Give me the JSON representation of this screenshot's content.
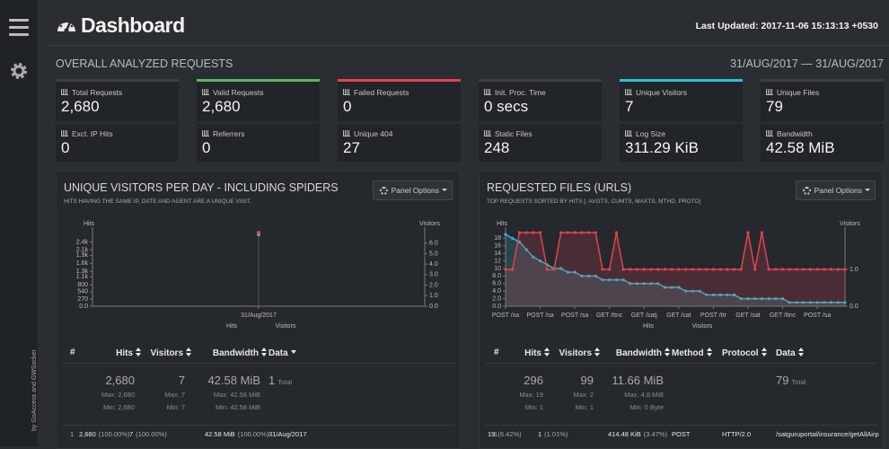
{
  "sidebar": {
    "credit": "by GoAccess and GWSocket"
  },
  "header": {
    "title": "Dashboard",
    "last_updated": "Last Updated: 2017-11-06 15:13:13 +0530"
  },
  "overview": {
    "title": "OVERALL ANALYZED REQUESTS",
    "date_range": "31/AUG/2017 — 31/AUG/2017",
    "cards": [
      {
        "label": "Total Requests",
        "value": "2,680",
        "accent": "#3a3f45"
      },
      {
        "label": "Valid Requests",
        "value": "2,680",
        "accent": "#5cb85c"
      },
      {
        "label": "Failed Requests",
        "value": "0",
        "accent": "#e0434f"
      },
      {
        "label": "Init. Proc. Time",
        "value": "0 secs",
        "accent": "#3a3f45"
      },
      {
        "label": "Unique Visitors",
        "value": "7",
        "accent": "#2bc0d8"
      },
      {
        "label": "Unique Files",
        "value": "79",
        "accent": "#3a3f45"
      },
      {
        "label": "Excl. IP Hits",
        "value": "0"
      },
      {
        "label": "Referrers",
        "value": "0"
      },
      {
        "label": "Unique 404",
        "value": "27"
      },
      {
        "label": "Static Files",
        "value": "248"
      },
      {
        "label": "Log Size",
        "value": "311.29 KiB"
      },
      {
        "label": "Bandwidth",
        "value": "42.58 MiB"
      }
    ]
  },
  "panels": [
    {
      "title": "UNIQUE VISITORS PER DAY - INCLUDING SPIDERS",
      "subtitle": "HITS HAVING THE SAME IP, DATE AND AGENT ARE A UNIQUE VISIT.",
      "options": "Panel Options",
      "chart": {
        "type": "line",
        "y_label": "Hits",
        "y2_label": "Visitors",
        "x_grid": true,
        "categories": [
          "31/Aug/2017"
        ],
        "ylim": [
          0,
          2750
        ],
        "yticks": [
          {
            "value": 0,
            "label": "0.0"
          },
          270,
          540,
          800,
          {
            "value": 1100,
            "label": "1.1k"
          },
          {
            "value": 1300,
            "label": "1.3k"
          },
          {
            "value": 1600,
            "label": "1.6k"
          },
          {
            "value": 1900,
            "label": "1.9k"
          },
          {
            "value": 2100,
            "label": "2.1k"
          },
          {
            "value": 2400,
            "label": "2.4k"
          }
        ],
        "y2lim": [
          0,
          7
        ],
        "y2ticks": [
          {
            "value": 0,
            "label": "0.0"
          },
          {
            "value": 1,
            "label": "1.0"
          },
          {
            "value": 2,
            "label": "2.0"
          },
          {
            "value": 3,
            "label": "3.0"
          },
          {
            "value": 4,
            "label": "4.0"
          },
          {
            "value": 5,
            "label": "5.0"
          },
          {
            "value": 6,
            "label": "6.0"
          }
        ],
        "series": [
          {
            "name": "Hits",
            "color": "#35b7d0",
            "values": [
              2680
            ]
          },
          {
            "name": "Visitors",
            "color": "#e0434f",
            "axis": "y2",
            "values": [
              7
            ]
          }
        ]
      },
      "table": {
        "columns": [
          {
            "label": "#"
          },
          {
            "label": "Hits",
            "sort": "both",
            "total": "2,680",
            "max": "Max: 2,680",
            "min": "Min: 2,680"
          },
          {
            "label": "Visitors",
            "sort": "both",
            "total": "7",
            "max": "Max: 7",
            "min": "Min: 7"
          },
          {
            "label": "Bandwidth",
            "sort": "both",
            "total": "42.58 MiB",
            "max": "Max: 42.58 MiB",
            "min": "Min: 42.58 MiB"
          },
          {
            "label": "Data",
            "sort": "desc",
            "total": "1",
            "total_label": "Total"
          }
        ],
        "rows": [
          [
            "1",
            {
              "value": "2,680",
              "share": "(100.00%)"
            },
            {
              "value": "7",
              "share": "(100.00%)"
            },
            {
              "value": "42.58 MiB",
              "share": "(100.00%)"
            },
            "31/Aug/2017"
          ]
        ]
      }
    },
    {
      "title": "REQUESTED FILES (URLS)",
      "subtitle": "TOP REQUESTS SORTED BY HITS [, AVGTS, CUMTS, MAXTS, MTHD, PROTO]",
      "options": "Panel Options",
      "chart": {
        "type": "line",
        "y_label": "Hits",
        "y2_label": "Visitors",
        "area": true,
        "categories": [
          "POST /sa",
          null,
          null,
          null,
          null,
          "POST /sa",
          null,
          null,
          null,
          null,
          "POST /sa",
          null,
          null,
          null,
          null,
          "GET /ttnc",
          null,
          null,
          null,
          null,
          "GET /satj",
          null,
          null,
          null,
          null,
          "GET /cat",
          null,
          null,
          null,
          null,
          "POST /ttr",
          null,
          null,
          null,
          null,
          "GET /sat",
          null,
          null,
          null,
          null,
          "GET /ttnc",
          null,
          null,
          null,
          null,
          "POST /sa",
          null,
          null,
          null,
          null
        ],
        "ylim": [
          0,
          19.5
        ],
        "yticks": [
          {
            "value": 0,
            "label": "0.0"
          },
          {
            "value": 2,
            "label": "2.0"
          },
          {
            "value": 4,
            "label": "4.0"
          },
          {
            "value": 6,
            "label": "6.0"
          },
          {
            "value": 8,
            "label": "8.0"
          },
          10,
          12,
          14,
          16,
          18
        ],
        "y2lim": [
          0,
          2
        ],
        "y2ticks": [
          {
            "value": 0,
            "label": "0.0"
          },
          {
            "value": 1,
            "label": "1.0"
          }
        ],
        "series": [
          {
            "name": "Hits",
            "color": "#35b7d0",
            "values": [
              19,
              18,
              17,
              15,
              13,
              12,
              11,
              10,
              10,
              9,
              9,
              8,
              8,
              8,
              7,
              7,
              7,
              7,
              6,
              6,
              6,
              6,
              6,
              5,
              5,
              5,
              4,
              4,
              4,
              3,
              3,
              3,
              3,
              3,
              2,
              2,
              2,
              2,
              2,
              2,
              2,
              1,
              1,
              1,
              1,
              1,
              1,
              1,
              1,
              1
            ]
          },
          {
            "name": "Visitors",
            "color": "#e0434f",
            "axis": "y2",
            "values": [
              1,
              1,
              2,
              2,
              2,
              2,
              1,
              1,
              2,
              2,
              2,
              2,
              2,
              2,
              1,
              1,
              2,
              1,
              1,
              1,
              1,
              1,
              1,
              1,
              1,
              1,
              1,
              1,
              1,
              1,
              1,
              1,
              1,
              1,
              1,
              2,
              1,
              2,
              1,
              1,
              1,
              1,
              1,
              1,
              1,
              1,
              1,
              1,
              1,
              1
            ]
          }
        ]
      },
      "table": {
        "columns": [
          {
            "label": "#"
          },
          {
            "label": "Hits",
            "sort": "both",
            "total": "296",
            "max": "Max: 19",
            "min": "Min: 1"
          },
          {
            "label": "Visitors",
            "sort": "both",
            "total": "99",
            "max": "Max: 2",
            "min": "Min: 1"
          },
          {
            "label": "Bandwidth",
            "sort": "both",
            "total": "11.66 MiB",
            "max": "Max: 4.8 MiB",
            "min": "Min: 0 Byte"
          },
          {
            "label": "Method",
            "sort": "both"
          },
          {
            "label": "Protocol",
            "sort": "both"
          },
          {
            "label": "Data",
            "sort": "both",
            "total": "79",
            "total_label": "Total"
          }
        ],
        "rows": [
          [
            "1",
            {
              "value": "19",
              "share": "(6.42%)"
            },
            {
              "value": "1",
              "share": "(1.01%)"
            },
            {
              "value": "414.48 KiB",
              "share": "(3.47%)"
            },
            "POST",
            "HTTP/2.0",
            "/satguruportal/insurance/getAllAirp"
          ]
        ]
      }
    }
  ]
}
